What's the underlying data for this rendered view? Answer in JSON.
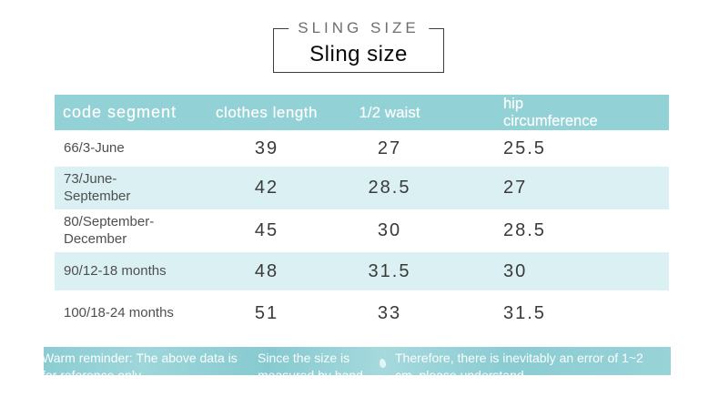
{
  "title": {
    "eyebrow": "SLING SIZE",
    "main": "Sling size"
  },
  "table": {
    "headers": {
      "code": "code segment",
      "length": "clothes length",
      "waist": "1/2 waist",
      "hip": "hip circumference"
    },
    "rows": [
      {
        "code": "66/3-June",
        "length": "39",
        "waist": "27",
        "hip": "25.5"
      },
      {
        "code": "73/June-September",
        "length": "42",
        "waist": "28.5",
        "hip": "27"
      },
      {
        "code": "80/September-December",
        "length": "45",
        "waist": "30",
        "hip": "28.5"
      },
      {
        "code": "90/12-18 months",
        "length": "48",
        "waist": "31.5",
        "hip": "30"
      },
      {
        "code": "100/18-24 months",
        "length": "51",
        "waist": "33",
        "hip": "31.5"
      }
    ]
  },
  "footer": {
    "note1_line1": "Warm reminder: The above data is",
    "note1_line2": "for reference only",
    "note2_line1": "Since the size is",
    "note2_line2": "measured by hand",
    "note3_line1": "Therefore, there is inevitably an error of 1~2",
    "note3_line2": "cm, please understand"
  },
  "colors": {
    "header_bg": "#92d1d6",
    "row_alt_bg": "#daf0f3",
    "footer_bg": "#8accd2",
    "label_color": "#4f4f4f",
    "num_color": "#3a3a3a"
  }
}
